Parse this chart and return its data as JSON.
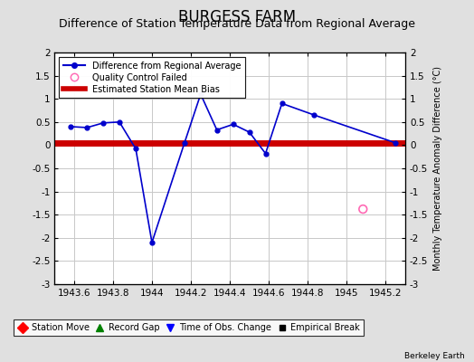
{
  "title": "BURGESS FARM",
  "subtitle": "Difference of Station Temperature Data from Regional Average",
  "ylabel_right": "Monthly Temperature Anomaly Difference (°C)",
  "watermark": "Berkeley Earth",
  "xlim": [
    1943.5,
    1945.3
  ],
  "ylim": [
    -3,
    2
  ],
  "yticks": [
    -3,
    -2.5,
    -2,
    -1.5,
    -1,
    -0.5,
    0,
    0.5,
    1,
    1.5,
    2
  ],
  "xticks": [
    1943.6,
    1943.8,
    1944,
    1944.2,
    1944.4,
    1944.6,
    1944.8,
    1945,
    1945.2
  ],
  "xtick_labels": [
    "1943.6",
    "1943.8",
    "1944",
    "1944.2",
    "1944.4",
    "1944.6",
    "1944.8",
    "1945",
    "1945.2"
  ],
  "main_line_x": [
    1943.583,
    1943.667,
    1943.75,
    1943.833,
    1943.917,
    1944.0,
    1944.167,
    1944.25,
    1944.333,
    1944.417,
    1944.5,
    1944.583,
    1944.667,
    1944.833,
    1945.25
  ],
  "main_line_y": [
    0.4,
    0.38,
    0.48,
    0.5,
    -0.08,
    -2.1,
    0.05,
    1.1,
    0.33,
    0.45,
    0.28,
    -0.18,
    0.9,
    0.65,
    0.05
  ],
  "main_line_color": "#0000CC",
  "mean_bias": 0.05,
  "mean_bias_color": "#CC0000",
  "qc_failed_x": [
    1945.083
  ],
  "qc_failed_y": [
    -1.38
  ],
  "qc_failed_color": "#FF69B4",
  "bg_color": "#E0E0E0",
  "plot_bg_color": "#FFFFFF",
  "grid_color": "#C8C8C8",
  "title_fontsize": 12,
  "subtitle_fontsize": 9,
  "tick_fontsize": 7.5
}
